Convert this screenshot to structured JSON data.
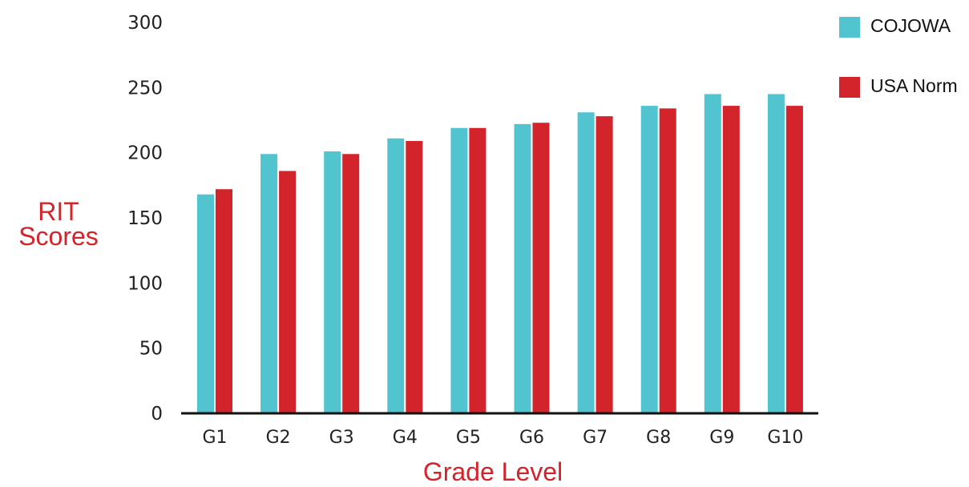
{
  "chart_data": {
    "type": "bar",
    "title": "",
    "xlabel": "Grade Level",
    "ylabel_lines": [
      "RIT",
      "Scores"
    ],
    "categories": [
      "G1",
      "G2",
      "G3",
      "G4",
      "G5",
      "G6",
      "G7",
      "G8",
      "G9",
      "G10"
    ],
    "series": [
      {
        "name": "COJOWA",
        "color": "#52C4D0",
        "values": [
          168,
          199,
          201,
          211,
          219,
          222,
          231,
          236,
          245,
          245
        ]
      },
      {
        "name": "USA Norm",
        "color": "#D3232B",
        "values": [
          172,
          186,
          199,
          209,
          219,
          223,
          228,
          234,
          236,
          236
        ]
      }
    ],
    "ylim": [
      0,
      300
    ],
    "yticks": [
      0,
      50,
      100,
      150,
      200,
      250,
      300
    ],
    "grid": false,
    "legend_position": "top-right",
    "title_color": "#D3232B"
  }
}
